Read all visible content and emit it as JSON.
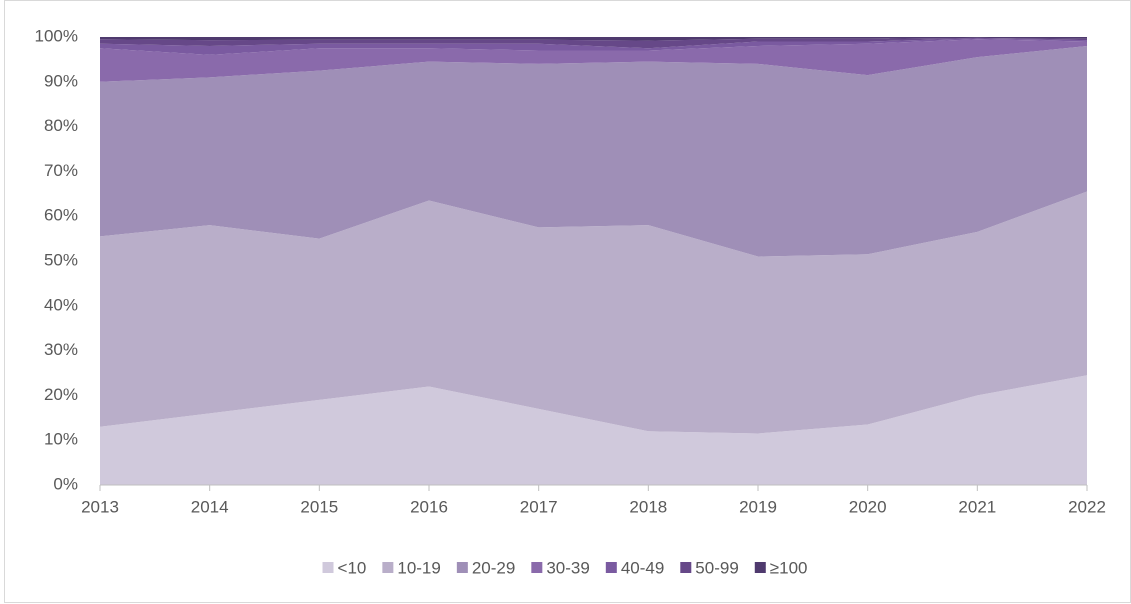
{
  "chart_data": {
    "type": "stacked_area",
    "categories": [
      "2013",
      "2014",
      "2015",
      "2016",
      "2017",
      "2018",
      "2019",
      "2020",
      "2021",
      "2022"
    ],
    "series": [
      {
        "name": "<10",
        "color": "#d0c9dc",
        "values": [
          13,
          16,
          19,
          22,
          17,
          12,
          11.5,
          13.5,
          20,
          24.5
        ]
      },
      {
        "name": "10-19",
        "color": "#b9aec9",
        "values": [
          42.5,
          42,
          36,
          41.5,
          40.5,
          46,
          39.5,
          38,
          36.5,
          41
        ]
      },
      {
        "name": "20-29",
        "color": "#9f8fb7",
        "values": [
          34.5,
          33,
          37.5,
          31,
          36.5,
          36.5,
          43,
          40,
          39,
          32.5
        ]
      },
      {
        "name": "30-39",
        "color": "#8a6aab",
        "values": [
          7.5,
          5,
          5,
          3,
          3,
          2.5,
          4,
          7,
          4,
          1
        ]
      },
      {
        "name": "40-49",
        "color": "#7a5aa0",
        "values": [
          1,
          2,
          1,
          1,
          1.5,
          0.5,
          1,
          0.5,
          0.2,
          0.3
        ]
      },
      {
        "name": "50-99",
        "color": "#664888",
        "values": [
          1,
          1.3,
          0.9,
          0.9,
          0.9,
          1.7,
          0.6,
          0.6,
          0.1,
          0.3
        ]
      },
      {
        "name": "≥100",
        "color": "#4f3a6e",
        "values": [
          0.5,
          0.7,
          0.6,
          0.6,
          0.6,
          0.8,
          0.4,
          0.4,
          0.2,
          0.4
        ]
      }
    ],
    "ylim": [
      0,
      100
    ],
    "yticks": [
      {
        "value": 0,
        "label": "0%"
      },
      {
        "value": 10,
        "label": "10%"
      },
      {
        "value": 20,
        "label": "20%"
      },
      {
        "value": 30,
        "label": "30%"
      },
      {
        "value": 40,
        "label": "40%"
      },
      {
        "value": 50,
        "label": "50%"
      },
      {
        "value": 60,
        "label": "60%"
      },
      {
        "value": 70,
        "label": "70%"
      },
      {
        "value": 80,
        "label": "80%"
      },
      {
        "value": 90,
        "label": "90%"
      },
      {
        "value": 100,
        "label": "100%"
      }
    ],
    "legend": "bottom"
  }
}
